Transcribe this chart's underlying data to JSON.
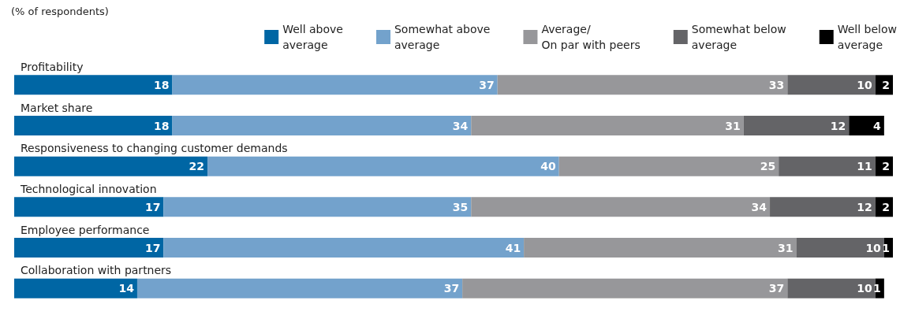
{
  "chart_data": {
    "type": "bar",
    "orientation": "horizontal",
    "stacked": true,
    "subtitle": "(% of respondents)",
    "categories": [
      "Profitability",
      "Market share",
      "Responsiveness to changing customer demands",
      "Technological innovation",
      "Employee performance",
      "Collaboration with partners"
    ],
    "series": [
      {
        "name": "Well above\naverage",
        "color": "#0066a4",
        "values": [
          18,
          18,
          22,
          17,
          17,
          14
        ]
      },
      {
        "name": "Somewhat above\naverage",
        "color": "#73a2cc",
        "values": [
          37,
          34,
          40,
          35,
          41,
          37
        ]
      },
      {
        "name": "Average/\nOn par with peers",
        "color": "#97979a",
        "values": [
          33,
          31,
          25,
          34,
          31,
          37
        ]
      },
      {
        "name": "Somewhat below\naverage",
        "color": "#646467",
        "values": [
          10,
          12,
          11,
          12,
          10,
          10
        ]
      },
      {
        "name": "Well below\naverage",
        "color": "#000000",
        "values": [
          2,
          4,
          2,
          2,
          1,
          1
        ]
      }
    ],
    "data_labels": true,
    "legend": "top right"
  }
}
